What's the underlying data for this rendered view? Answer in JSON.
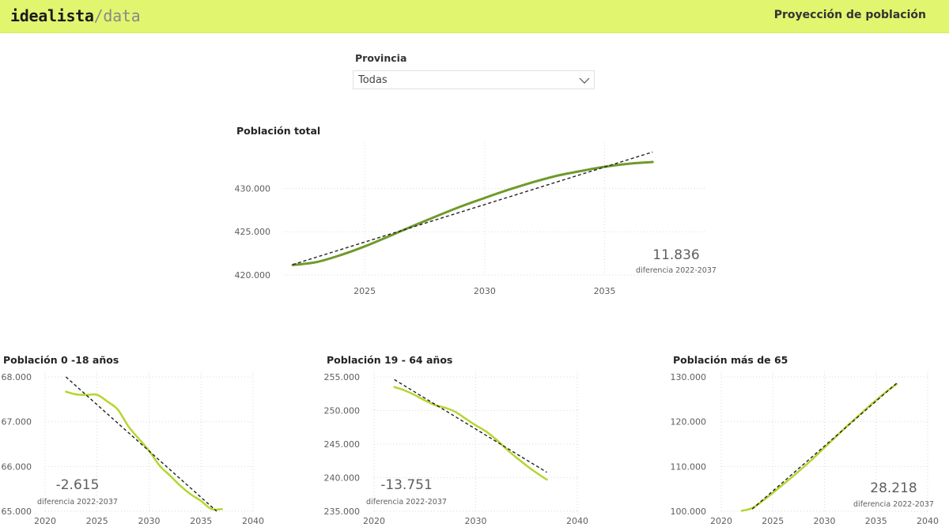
{
  "header": {
    "logo_main": "idealista",
    "logo_sep": "/",
    "logo_sub": "data",
    "title": "Proyección de población"
  },
  "slicer": {
    "label": "Provincia",
    "value": "Todas"
  },
  "colors": {
    "header_bg": "#e2f56f",
    "main_line": "#6f9a2b",
    "small_line": "#b3d630",
    "trend": "#222222"
  },
  "chart_data": [
    {
      "type": "line",
      "title": "Población total",
      "x": [
        2022,
        2023,
        2024,
        2025,
        2026,
        2027,
        2028,
        2029,
        2030,
        2031,
        2032,
        2033,
        2034,
        2035,
        2036,
        2037
      ],
      "series": [
        {
          "values": [
            421150,
            421500,
            422300,
            423300,
            424450,
            425650,
            426800,
            427900,
            428900,
            429850,
            430700,
            431450,
            432000,
            432500,
            432850,
            433050
          ]
        }
      ],
      "trendline": {
        "x": [
          2022,
          2037
        ],
        "y": [
          421200,
          434200
        ]
      },
      "xticks": [
        "2025",
        "2030",
        "2035"
      ],
      "yticks": [
        "420.000",
        "425.000",
        "430.000"
      ],
      "xlim": [
        2021.6,
        2039.2
      ],
      "ylim": [
        420000,
        434600
      ],
      "kpi": {
        "value": "11.836",
        "label": "diferencia 2022-2037"
      }
    },
    {
      "type": "line",
      "title": "Población 0 -18 años",
      "x": [
        2022,
        2023,
        2024,
        2025,
        2026,
        2027,
        2028,
        2029,
        2030,
        2031,
        2032,
        2033,
        2034,
        2035,
        2036,
        2037
      ],
      "series": [
        {
          "values": [
            67670,
            67610,
            67600,
            67600,
            67450,
            67270,
            66900,
            66620,
            66350,
            66020,
            65800,
            65570,
            65380,
            65230,
            65050,
            65050
          ]
        }
      ],
      "trendline": {
        "x": [
          2022,
          2036.5
        ],
        "y": [
          68000,
          65000
        ]
      },
      "xticks": [
        "2020",
        "2025",
        "2030",
        "2035",
        "2040"
      ],
      "yticks": [
        "65.000",
        "66.000",
        "67.000",
        "68.000"
      ],
      "xlim": [
        2020,
        2040
      ],
      "ylim": [
        65000,
        68000
      ],
      "kpi": {
        "value": "-2.615",
        "label": "diferencia 2022-2037"
      }
    },
    {
      "type": "line",
      "title": "Población 19 - 64 años",
      "x": [
        2022,
        2023,
        2024,
        2025,
        2026,
        2027,
        2028,
        2029,
        2030,
        2031,
        2032,
        2033,
        2034,
        2035,
        2036,
        2037
      ],
      "series": [
        {
          "values": [
            253500,
            253000,
            252300,
            251500,
            250800,
            250400,
            249800,
            248800,
            247800,
            246900,
            245700,
            244300,
            243000,
            241800,
            240700,
            239700
          ]
        }
      ],
      "trendline": {
        "x": [
          2022,
          2037
        ],
        "y": [
          254600,
          240800
        ]
      },
      "xticks": [
        "2020",
        "2030",
        "2040"
      ],
      "yticks": [
        "235.000",
        "240.000",
        "245.000",
        "250.000",
        "255.000"
      ],
      "xlim": [
        2020,
        2040
      ],
      "ylim": [
        235000,
        255000
      ],
      "kpi": {
        "value": "-13.751",
        "label": "diferencia 2022-2037"
      }
    },
    {
      "type": "line",
      "title": "Población más de 65",
      "x": [
        2022,
        2023,
        2024,
        2025,
        2026,
        2027,
        2028,
        2029,
        2030,
        2031,
        2032,
        2033,
        2034,
        2035,
        2036,
        2037
      ],
      "series": [
        {
          "values": [
            100100,
            100700,
            102300,
            104100,
            106000,
            107900,
            109900,
            112000,
            114200,
            116400,
            118600,
            120700,
            122800,
            124800,
            126700,
            128400
          ]
        }
      ],
      "trendline": {
        "x": [
          2023,
          2037
        ],
        "y": [
          100500,
          128600
        ]
      },
      "xticks": [
        "2020",
        "2025",
        "2030",
        "2035",
        "2040"
      ],
      "yticks": [
        "100.000",
        "110.000",
        "120.000",
        "130.000"
      ],
      "xlim": [
        2020,
        2040
      ],
      "ylim": [
        100000,
        130000
      ],
      "kpi": {
        "value": "28.218",
        "label": "diferencia 2022-2037"
      }
    }
  ]
}
